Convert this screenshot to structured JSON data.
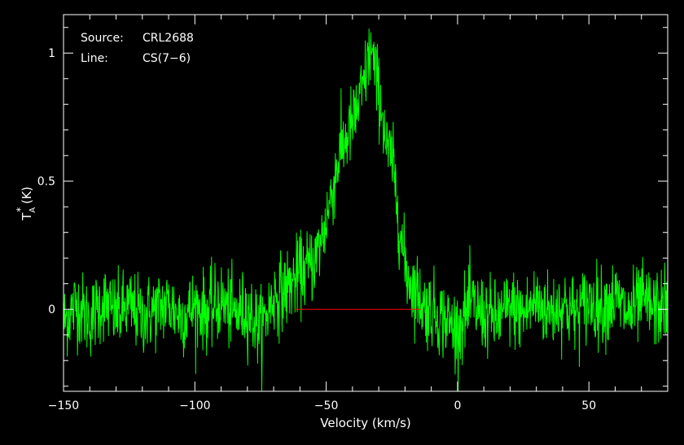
{
  "chart_data": {
    "type": "line",
    "info": {
      "source_label": "Source:",
      "source_value": "CRL2688",
      "line_label": "Line:",
      "line_value": "CS(7−6)"
    },
    "xlabel": "Velocity (km/s)",
    "ylabel_main": "T",
    "ylabel_sup": "*",
    "ylabel_sub": "A",
    "ylabel_unit": "(K)",
    "xlim": [
      -150,
      80
    ],
    "ylim": [
      -0.32,
      1.15
    ],
    "x_ticks": [
      -150,
      -100,
      -50,
      0,
      50
    ],
    "x_tick_labels": [
      "−150",
      "−100",
      "−50",
      "0",
      "50"
    ],
    "y_ticks": [
      0,
      0.5,
      1
    ],
    "y_tick_labels": [
      "0",
      "0.5",
      "1"
    ],
    "grid": false,
    "colors": {
      "spectrum": "#00ff00",
      "baseline": "#ff0000",
      "frame": "#ffffff",
      "background": "#000000"
    },
    "baseline": {
      "x_start": -62,
      "x_end": -14,
      "y": 0
    },
    "series": [
      {
        "x": [
          -150,
          -145,
          -140,
          -135,
          -130,
          -125,
          -120,
          -115,
          -110,
          -105,
          -100,
          -95,
          -90,
          -85,
          -80,
          -75,
          -70,
          -65,
          -60,
          -57,
          -54,
          -51,
          -48,
          -45,
          -42,
          -39,
          -36,
          -34,
          -33,
          -31,
          -29,
          -27,
          -25,
          -23,
          -21,
          -19,
          -17,
          -15,
          -13,
          -10,
          -5,
          0,
          5,
          10,
          15,
          20,
          25,
          30,
          35,
          40,
          45,
          50,
          55,
          60,
          65,
          70,
          75,
          80
        ],
        "values": [
          -0.05,
          0.02,
          -0.04,
          0.03,
          -0.02,
          0.01,
          -0.03,
          0.0,
          0.02,
          -0.03,
          0.01,
          -0.01,
          0.03,
          -0.02,
          0.0,
          -0.08,
          0.05,
          0.08,
          0.14,
          0.16,
          0.2,
          0.3,
          0.45,
          0.6,
          0.68,
          0.75,
          0.86,
          0.97,
          1.02,
          0.9,
          0.8,
          0.62,
          0.59,
          0.42,
          0.23,
          0.13,
          0.09,
          0.06,
          0.01,
          0.0,
          -0.04,
          -0.08,
          0.02,
          -0.02,
          -0.04,
          0.01,
          -0.02,
          0.03,
          -0.01,
          0.02,
          -0.02,
          0.03,
          0.01,
          0.04,
          -0.02,
          0.03,
          0.0,
          0.02
        ]
      }
    ]
  }
}
